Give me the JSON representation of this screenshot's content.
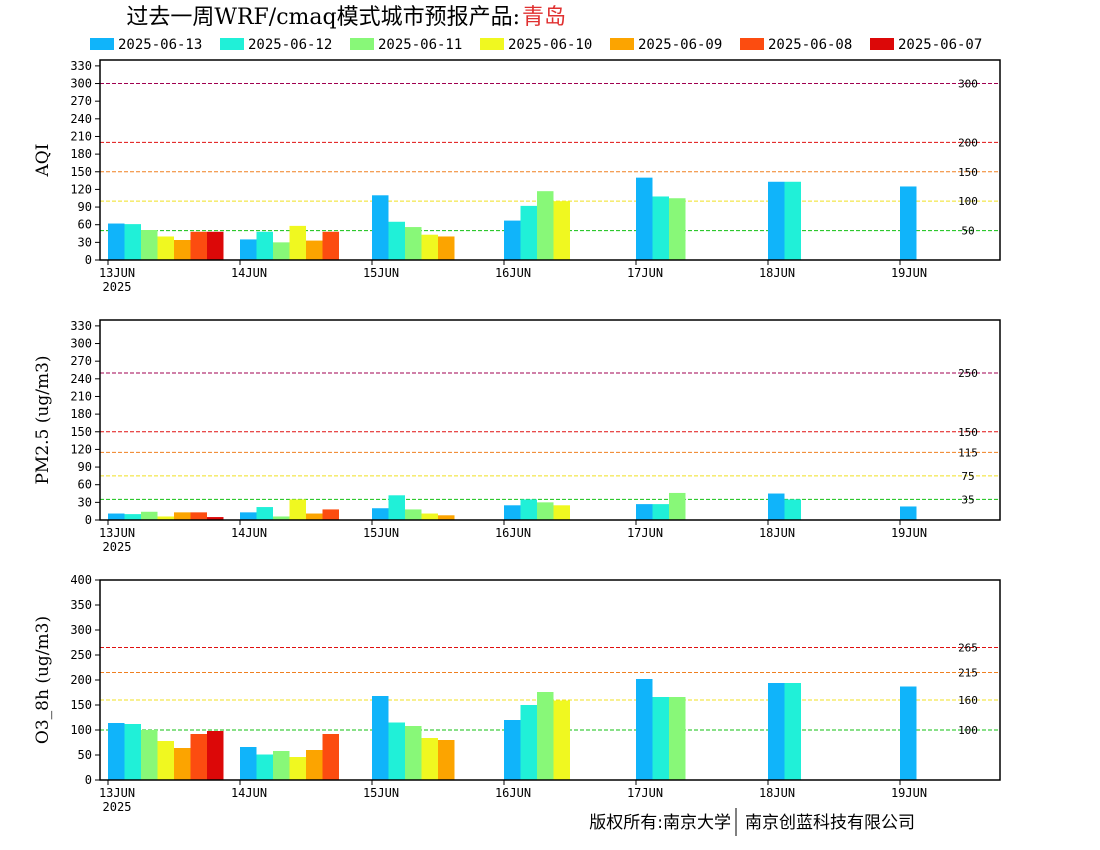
{
  "title": {
    "main": "过去一周WRF/cmaq模式城市预报产品:",
    "city": "青岛",
    "city_color": "#e03030"
  },
  "legend": [
    {
      "label": "2025-06-13",
      "color": "#10b4fa"
    },
    {
      "label": "2025-06-12",
      "color": "#20f0d8"
    },
    {
      "label": "2025-06-11",
      "color": "#88f878"
    },
    {
      "label": "2025-06-10",
      "color": "#f0f820"
    },
    {
      "label": "2025-06-09",
      "color": "#fca400"
    },
    {
      "label": "2025-06-08",
      "color": "#fc4c10"
    },
    {
      "label": "2025-06-07",
      "color": "#dc0808"
    }
  ],
  "footer": {
    "left": "版权所有:南京大学",
    "right": "南京创蓝科技有限公司"
  },
  "chart_data": [
    {
      "type": "bar",
      "ylabel": "AQI",
      "ylim": [
        0,
        340
      ],
      "yticks": [
        0,
        30,
        60,
        90,
        120,
        150,
        180,
        210,
        240,
        270,
        300,
        330
      ],
      "categories": [
        "13JUN",
        "14JUN",
        "15JUN",
        "16JUN",
        "17JUN",
        "18JUN",
        "19JUN"
      ],
      "year_label": "2025",
      "reference_lines": [
        {
          "value": 300,
          "label": "300",
          "color": "#a00050"
        },
        {
          "value": 200,
          "label": "200",
          "color": "#e01010"
        },
        {
          "value": 150,
          "label": "150",
          "color": "#f08020"
        },
        {
          "value": 100,
          "label": "100",
          "color": "#f0e020"
        },
        {
          "value": 50,
          "label": "50",
          "color": "#10c010"
        }
      ],
      "series": [
        {
          "name": "2025-06-13",
          "values": [
            62,
            35,
            110,
            67,
            140,
            133,
            125
          ]
        },
        {
          "name": "2025-06-12",
          "values": [
            61,
            48,
            65,
            92,
            108,
            133,
            null
          ]
        },
        {
          "name": "2025-06-11",
          "values": [
            51,
            30,
            56,
            117,
            105,
            null,
            null
          ]
        },
        {
          "name": "2025-06-10",
          "values": [
            40,
            58,
            43,
            100,
            null,
            null,
            null
          ]
        },
        {
          "name": "2025-06-09",
          "values": [
            34,
            33,
            40,
            null,
            null,
            null,
            null
          ]
        },
        {
          "name": "2025-06-08",
          "values": [
            48,
            48,
            null,
            null,
            null,
            null,
            null
          ]
        },
        {
          "name": "2025-06-07",
          "values": [
            48,
            null,
            null,
            null,
            null,
            null,
            null
          ]
        }
      ]
    },
    {
      "type": "bar",
      "ylabel": "PM2.5 (ug/m3)",
      "ylim": [
        0,
        340
      ],
      "yticks": [
        0,
        30,
        60,
        90,
        120,
        150,
        180,
        210,
        240,
        270,
        300,
        330
      ],
      "categories": [
        "13JUN",
        "14JUN",
        "15JUN",
        "16JUN",
        "17JUN",
        "18JUN",
        "19JUN"
      ],
      "year_label": "2025",
      "reference_lines": [
        {
          "value": 250,
          "label": "250",
          "color": "#a00050"
        },
        {
          "value": 150,
          "label": "150",
          "color": "#e01010"
        },
        {
          "value": 115,
          "label": "115",
          "color": "#f08020"
        },
        {
          "value": 75,
          "label": "75",
          "color": "#f0e020"
        },
        {
          "value": 35,
          "label": "35",
          "color": "#10c010"
        }
      ],
      "series": [
        {
          "name": "2025-06-13",
          "values": [
            11,
            13,
            20,
            25,
            27,
            45,
            23
          ]
        },
        {
          "name": "2025-06-12",
          "values": [
            10,
            22,
            42,
            35,
            27,
            35,
            null
          ]
        },
        {
          "name": "2025-06-11",
          "values": [
            14,
            6,
            18,
            30,
            46,
            null,
            null
          ]
        },
        {
          "name": "2025-06-10",
          "values": [
            6,
            35,
            11,
            25,
            null,
            null,
            null
          ]
        },
        {
          "name": "2025-06-09",
          "values": [
            13,
            11,
            8,
            null,
            null,
            null,
            null
          ]
        },
        {
          "name": "2025-06-08",
          "values": [
            13,
            18,
            null,
            null,
            null,
            null,
            null
          ]
        },
        {
          "name": "2025-06-07",
          "values": [
            5,
            null,
            null,
            null,
            null,
            null,
            null
          ]
        }
      ]
    },
    {
      "type": "bar",
      "ylabel": "O3_8h (ug/m3)",
      "ylim": [
        0,
        400
      ],
      "yticks": [
        0,
        50,
        100,
        150,
        200,
        250,
        300,
        350,
        400
      ],
      "categories": [
        "13JUN",
        "14JUN",
        "15JUN",
        "16JUN",
        "17JUN",
        "18JUN",
        "19JUN"
      ],
      "year_label": "2025",
      "reference_lines": [
        {
          "value": 265,
          "label": "265",
          "color": "#e01010"
        },
        {
          "value": 215,
          "label": "215",
          "color": "#f08020"
        },
        {
          "value": 160,
          "label": "160",
          "color": "#f0e020"
        },
        {
          "value": 100,
          "label": "100",
          "color": "#10c010"
        }
      ],
      "series": [
        {
          "name": "2025-06-13",
          "values": [
            114,
            66,
            168,
            120,
            202,
            194,
            187
          ]
        },
        {
          "name": "2025-06-12",
          "values": [
            112,
            51,
            115,
            150,
            166,
            194,
            null
          ]
        },
        {
          "name": "2025-06-11",
          "values": [
            100,
            58,
            108,
            176,
            166,
            null,
            null
          ]
        },
        {
          "name": "2025-06-10",
          "values": [
            78,
            46,
            84,
            159,
            null,
            null,
            null
          ]
        },
        {
          "name": "2025-06-09",
          "values": [
            64,
            60,
            80,
            null,
            null,
            null,
            null
          ]
        },
        {
          "name": "2025-06-08",
          "values": [
            92,
            92,
            null,
            null,
            null,
            null,
            null
          ]
        },
        {
          "name": "2025-06-07",
          "values": [
            98,
            null,
            null,
            null,
            null,
            null,
            null
          ]
        }
      ]
    }
  ]
}
